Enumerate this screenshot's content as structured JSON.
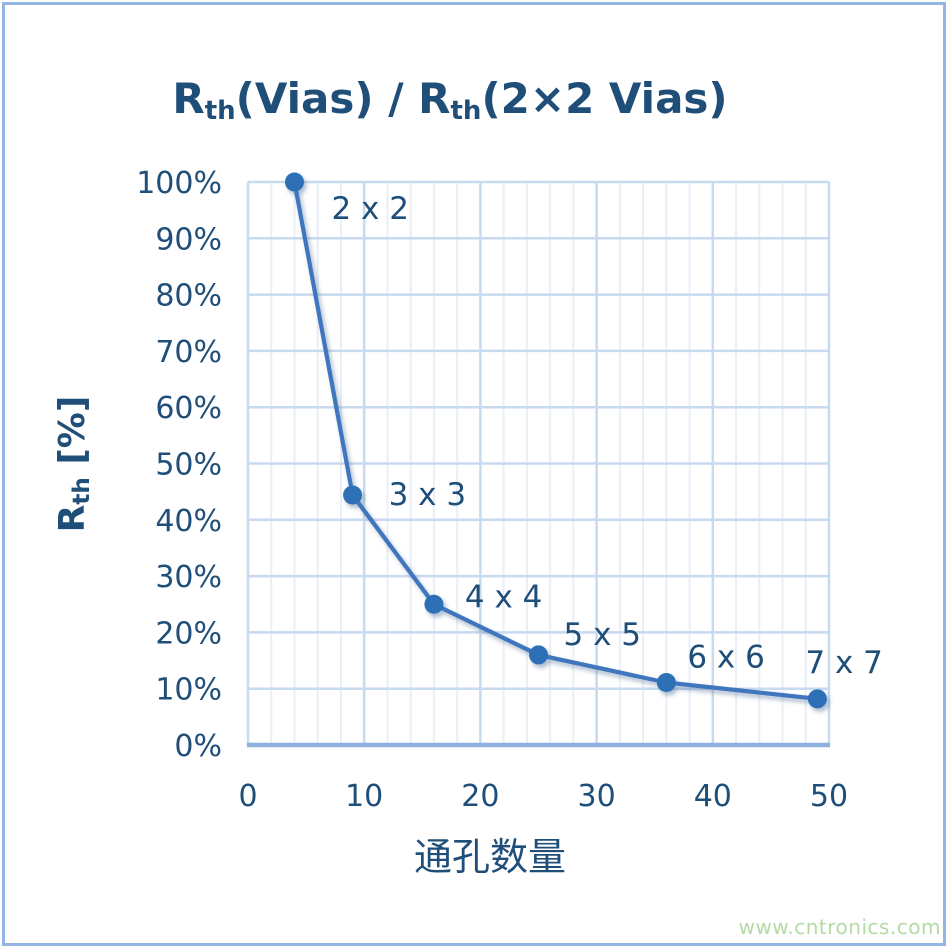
{
  "title": {
    "r1": "R",
    "sub1": "th",
    "mid": "(Vias) / R",
    "sub2": "th",
    "tail": "(2×2 Vias)"
  },
  "axes": {
    "y_title": {
      "r": "R",
      "sub": "th",
      "unit": " [%]"
    },
    "x_title": "通孔数量"
  },
  "watermark": "www.cntronics.com",
  "colors": {
    "background": "#ffffff",
    "frame": "#92b5e2",
    "text": "#1f4e79",
    "grid_minor": "#e9eff8",
    "grid_major": "#c7daf0",
    "axis": "#8fb0dc",
    "line": "#3f76be",
    "marker": "#2e6fb6",
    "watermark": "#aed69b"
  },
  "chart_data": {
    "type": "line",
    "title": "Rth(Vias) / Rth(2×2 Vias)",
    "xlabel": "通孔数量",
    "ylabel": "Rth [%]",
    "x": [
      4,
      9,
      16,
      25,
      36,
      49
    ],
    "values": [
      100,
      44.4,
      25,
      16,
      11.1,
      8.2
    ],
    "point_labels": [
      "2 x 2",
      "3 x 3",
      "4 x 4",
      "5 x 5",
      "6 x 6",
      "7 x 7"
    ],
    "x_ticks": [
      0,
      10,
      20,
      30,
      40,
      50
    ],
    "y_ticks": [
      0,
      10,
      20,
      30,
      40,
      50,
      60,
      70,
      80,
      90,
      100
    ],
    "y_tick_suffix": "%",
    "xlim": [
      0,
      50
    ],
    "ylim": [
      0,
      100
    ],
    "grid": "on",
    "minor_x_grid_step": 2,
    "legend": "none"
  }
}
